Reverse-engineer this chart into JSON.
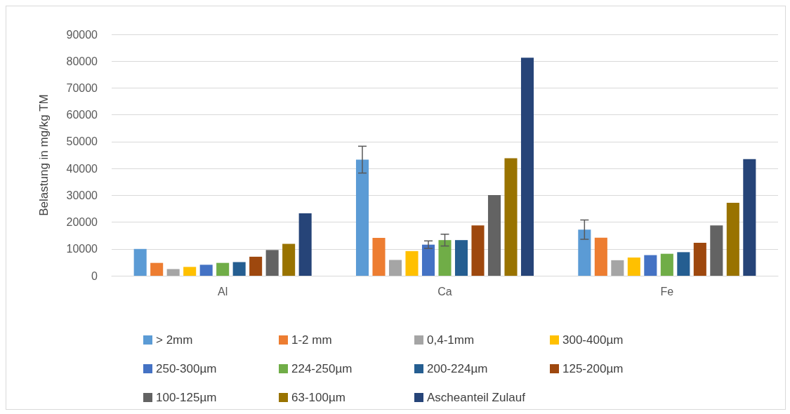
{
  "chart_data": {
    "type": "bar",
    "ylabel": "Belastung in mg/kg TM",
    "categories": [
      "Al",
      "Ca",
      "Fe"
    ],
    "ylim": [
      0,
      90000
    ],
    "yticks": [
      0,
      10000,
      20000,
      30000,
      40000,
      50000,
      60000,
      70000,
      80000,
      90000
    ],
    "grid": "y",
    "legend": "bottom",
    "series": [
      {
        "name": "> 2mm",
        "color": "#5b9bd5",
        "values": [
          10000,
          43300,
          17200
        ],
        "errors": [
          null,
          5000,
          3600
        ]
      },
      {
        "name": "1-2 mm",
        "color": "#ed7d31",
        "values": [
          4800,
          14100,
          14200
        ]
      },
      {
        "name": "0,4-1mm",
        "color": "#a5a5a5",
        "values": [
          2500,
          5900,
          5800
        ]
      },
      {
        "name": "300-400µm",
        "color": "#ffc000",
        "values": [
          3300,
          9200,
          6800
        ]
      },
      {
        "name": "250-300µm",
        "color": "#4472c4",
        "values": [
          4100,
          11600,
          7700
        ],
        "errors": [
          null,
          1400,
          null
        ]
      },
      {
        "name": "224-250µm",
        "color": "#70ad47",
        "values": [
          4800,
          13300,
          8200
        ],
        "errors": [
          null,
          2200,
          null
        ]
      },
      {
        "name": "200-224µm",
        "color": "#255e91",
        "values": [
          5100,
          13300,
          8800
        ]
      },
      {
        "name": "125-200µm",
        "color": "#9e480e",
        "values": [
          7100,
          18800,
          12300
        ]
      },
      {
        "name": "100-125µm",
        "color": "#636363",
        "values": [
          9600,
          30100,
          18800
        ]
      },
      {
        "name": "63-100µm",
        "color": "#997300",
        "values": [
          11900,
          43800,
          27200
        ]
      },
      {
        "name": "Ascheanteil Zulauf",
        "color": "#264478",
        "values": [
          23300,
          81300,
          43500
        ]
      }
    ]
  }
}
